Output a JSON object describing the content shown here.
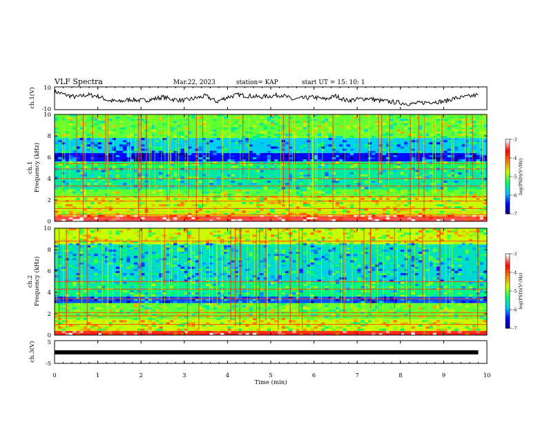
{
  "header": {
    "title": "VLF Spectra",
    "date": "Mar.22, 2023",
    "station": "station= KAP",
    "start": "start  UT  =   15: 10: 1"
  },
  "chart_data": [
    {
      "type": "line",
      "panel": "ch1-waveform",
      "ylabel": "ch.1(V)",
      "ylim": [
        -10,
        10
      ],
      "x_unit": "min",
      "xlim": [
        0,
        9.8
      ],
      "series": [
        {
          "x": [
            0,
            0.25,
            0.5,
            0.75,
            1,
            1.25,
            1.5,
            1.75,
            2,
            2.25,
            2.5,
            2.75,
            3,
            3.25,
            3.5,
            3.75,
            4,
            4.25,
            4.5,
            4.75,
            5,
            5.25,
            5.5,
            5.75,
            6,
            6.25,
            6.5,
            6.75,
            7,
            7.25,
            7.5,
            7.75,
            8,
            8.25,
            8.5,
            8.75,
            9,
            9.25,
            9.5,
            9.8
          ],
          "values": [
            6,
            3,
            1,
            3,
            2,
            -2,
            -3,
            -1,
            -2,
            -1,
            1,
            -1,
            -2,
            0,
            2,
            -3,
            1,
            3,
            2,
            1,
            2,
            3,
            -1,
            0,
            1,
            -1,
            2,
            -2,
            -1,
            0,
            -2,
            -3,
            -4,
            -5,
            -4,
            -3,
            -3,
            0,
            1,
            3
          ]
        }
      ]
    },
    {
      "type": "heatmap",
      "panel": "ch1-spectrogram",
      "ylabel": "ch.1\nFrequency  (kHz)",
      "ylim": [
        0,
        10
      ],
      "yticks": [
        "0",
        "2",
        "4",
        "6",
        "8",
        "10"
      ],
      "colorbar": {
        "label": "log(PSD)(V²/Hz)",
        "range": [
          -7,
          -3
        ],
        "ticks": [
          "-3",
          "-4",
          "-5",
          "-6",
          "-7"
        ]
      },
      "bands": [
        {
          "f0": 0,
          "f1": 0.5,
          "level": -3.4
        },
        {
          "f0": 0.5,
          "f1": 1.0,
          "level": -4.6
        },
        {
          "f0": 1.0,
          "f1": 2.3,
          "level": -4.7
        },
        {
          "f0": 2.3,
          "f1": 3.0,
          "level": -5.0
        },
        {
          "f0": 3.0,
          "f1": 5.0,
          "level": -5.5
        },
        {
          "f0": 5.0,
          "f1": 5.6,
          "level": -5.3
        },
        {
          "f0": 5.6,
          "f1": 6.4,
          "level": -6.4
        },
        {
          "f0": 6.4,
          "f1": 7.8,
          "level": -5.8
        },
        {
          "f0": 7.8,
          "f1": 10.0,
          "level": -5.0
        }
      ],
      "lines_khz": [
        0.4,
        0.6,
        1.2,
        1.9,
        2.3,
        3.3,
        4.0,
        4.9,
        5.4
      ]
    },
    {
      "type": "heatmap",
      "panel": "ch2-spectrogram",
      "ylabel": "ch.2\nFrequency  (kHz)",
      "ylim": [
        0,
        10
      ],
      "yticks": [
        "0",
        "2",
        "4",
        "6",
        "8",
        "10"
      ],
      "colorbar": {
        "label": "log(PSD)(V²/Hz)",
        "range": [
          -7,
          -3
        ],
        "ticks": [
          "-3",
          "-4",
          "-5",
          "-6",
          "-7"
        ]
      },
      "bands": [
        {
          "f0": 0,
          "f1": 0.4,
          "level": -3.5
        },
        {
          "f0": 0.4,
          "f1": 1.5,
          "level": -4.7
        },
        {
          "f0": 1.5,
          "f1": 3.0,
          "level": -5.0
        },
        {
          "f0": 3.0,
          "f1": 3.6,
          "level": -6.2
        },
        {
          "f0": 3.6,
          "f1": 5.0,
          "level": -5.4
        },
        {
          "f0": 5.0,
          "f1": 6.8,
          "level": -5.7
        },
        {
          "f0": 6.8,
          "f1": 8.5,
          "level": -5.6
        },
        {
          "f0": 8.5,
          "f1": 10.0,
          "level": -4.7
        }
      ],
      "lines_khz": [
        0.3,
        1.0,
        1.8,
        2.1,
        3.4,
        4.3,
        5.0,
        8.8
      ]
    },
    {
      "type": "line",
      "panel": "ch3-waveform",
      "ylabel": "ch.3(V)",
      "ylim": [
        -5,
        5
      ],
      "yticks": [
        "5",
        "-5"
      ],
      "x_unit": "min",
      "xlim": [
        0,
        9.8
      ],
      "series": [
        {
          "x": [
            0,
            9.8
          ],
          "values": [
            0,
            0
          ]
        }
      ]
    }
  ],
  "xaxis": {
    "label": "Time  (min)",
    "range": [
      0,
      10
    ],
    "ticks": [
      "0",
      "1",
      "2",
      "3",
      "4",
      "5",
      "6",
      "7",
      "8",
      "9",
      "10"
    ]
  },
  "ch1_yticks": {
    "top": "10",
    "bottom": "-10"
  },
  "colors": {
    "colormap": [
      "#000080",
      "#0000ff",
      "#00c8ff",
      "#00ff66",
      "#c8ff00",
      "#ff8000",
      "#ff0000",
      "#ffffff"
    ]
  }
}
